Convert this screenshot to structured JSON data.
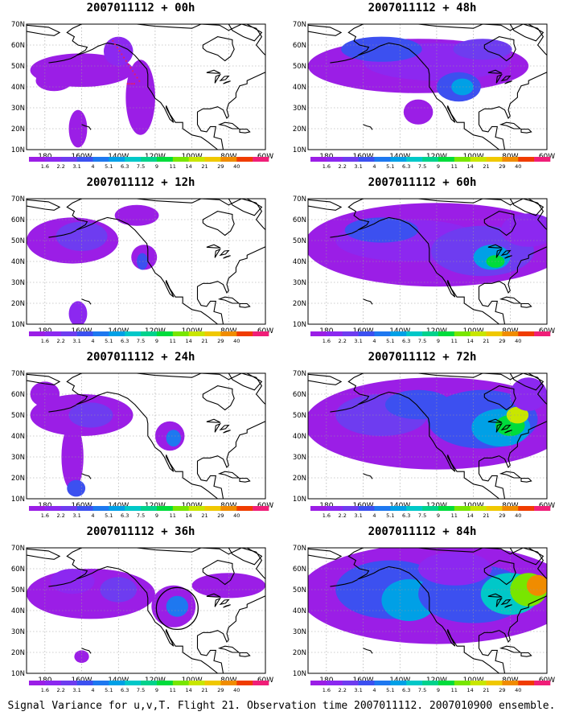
{
  "caption": "Signal Variance for u,v,T. Flight 21. Observation time 2007011112. 2007010900 ensemble.",
  "lat_labels": [
    "70N",
    "60N",
    "50N",
    "40N",
    "30N",
    "20N",
    "10N"
  ],
  "lon_labels": [
    "180",
    "160W",
    "140W",
    "120W",
    "100W",
    "80W",
    "60W"
  ],
  "colorbar": {
    "labels": [
      "1.6",
      "2.2",
      "3.1",
      "4",
      "5.1",
      "6.3",
      "7.5",
      "9",
      "11",
      "14",
      "21",
      "29",
      "40"
    ],
    "colors": [
      "#9b1ee6",
      "#8c28f0",
      "#6e3cf0",
      "#3c50f0",
      "#1e78f0",
      "#00a0e6",
      "#00c8c8",
      "#00d28c",
      "#00dc3c",
      "#78e600",
      "#c8e600",
      "#f0c800",
      "#f08c00",
      "#f03c00",
      "#f01e78"
    ]
  },
  "panels": [
    {
      "title": "2007011112 + 00h",
      "column": "left",
      "row": 0
    },
    {
      "title": "2007011112 + 12h",
      "column": "left",
      "row": 1
    },
    {
      "title": "2007011112 + 24h",
      "column": "left",
      "row": 2
    },
    {
      "title": "2007011112 + 36h",
      "column": "left",
      "row": 3
    },
    {
      "title": "2007011112 + 48h",
      "column": "right",
      "row": 0
    },
    {
      "title": "2007011112 + 60h",
      "column": "right",
      "row": 1
    },
    {
      "title": "2007011112 + 72h",
      "column": "right",
      "row": 2
    },
    {
      "title": "2007011112 + 84h",
      "column": "right",
      "row": 3
    }
  ]
}
